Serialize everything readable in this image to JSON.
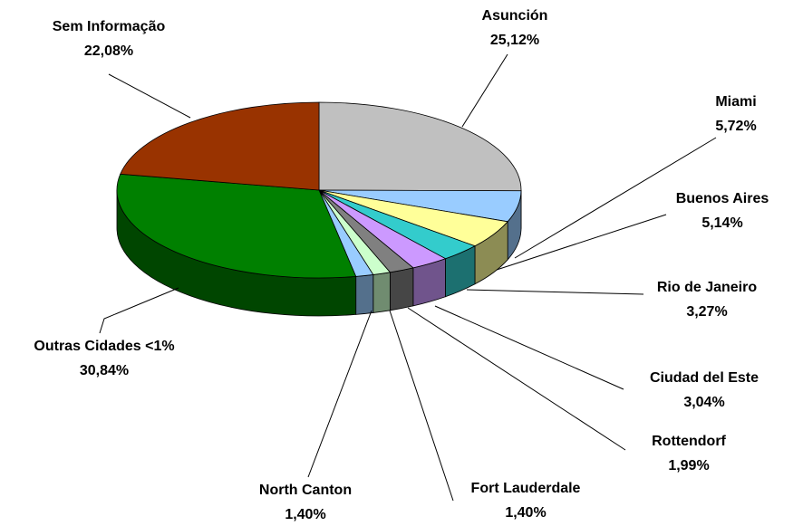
{
  "chart_data": {
    "type": "pie",
    "categories": [
      "Asunción",
      "Miami",
      "Buenos Aires",
      "Rio de Janeiro",
      "Ciudad del Este",
      "Rottendorf",
      "Fort Lauderdale",
      "North Canton",
      "Outras Cidades <1%",
      "Sem Informação"
    ],
    "values": [
      25.12,
      5.72,
      5.14,
      3.27,
      3.04,
      1.99,
      1.4,
      1.4,
      30.84,
      22.08
    ],
    "value_labels": [
      "25,12%",
      "5,72%",
      "5,14%",
      "3,27%",
      "3,04%",
      "1,99%",
      "1,40%",
      "1,40%",
      "30,84%",
      "22,08%"
    ],
    "colors": [
      "#c0c0c0",
      "#99ccff",
      "#ffff99",
      "#33cccc",
      "#cc99ff",
      "#808080",
      "#ccffcc",
      "#99ccff",
      "#008000",
      "#993300"
    ]
  }
}
